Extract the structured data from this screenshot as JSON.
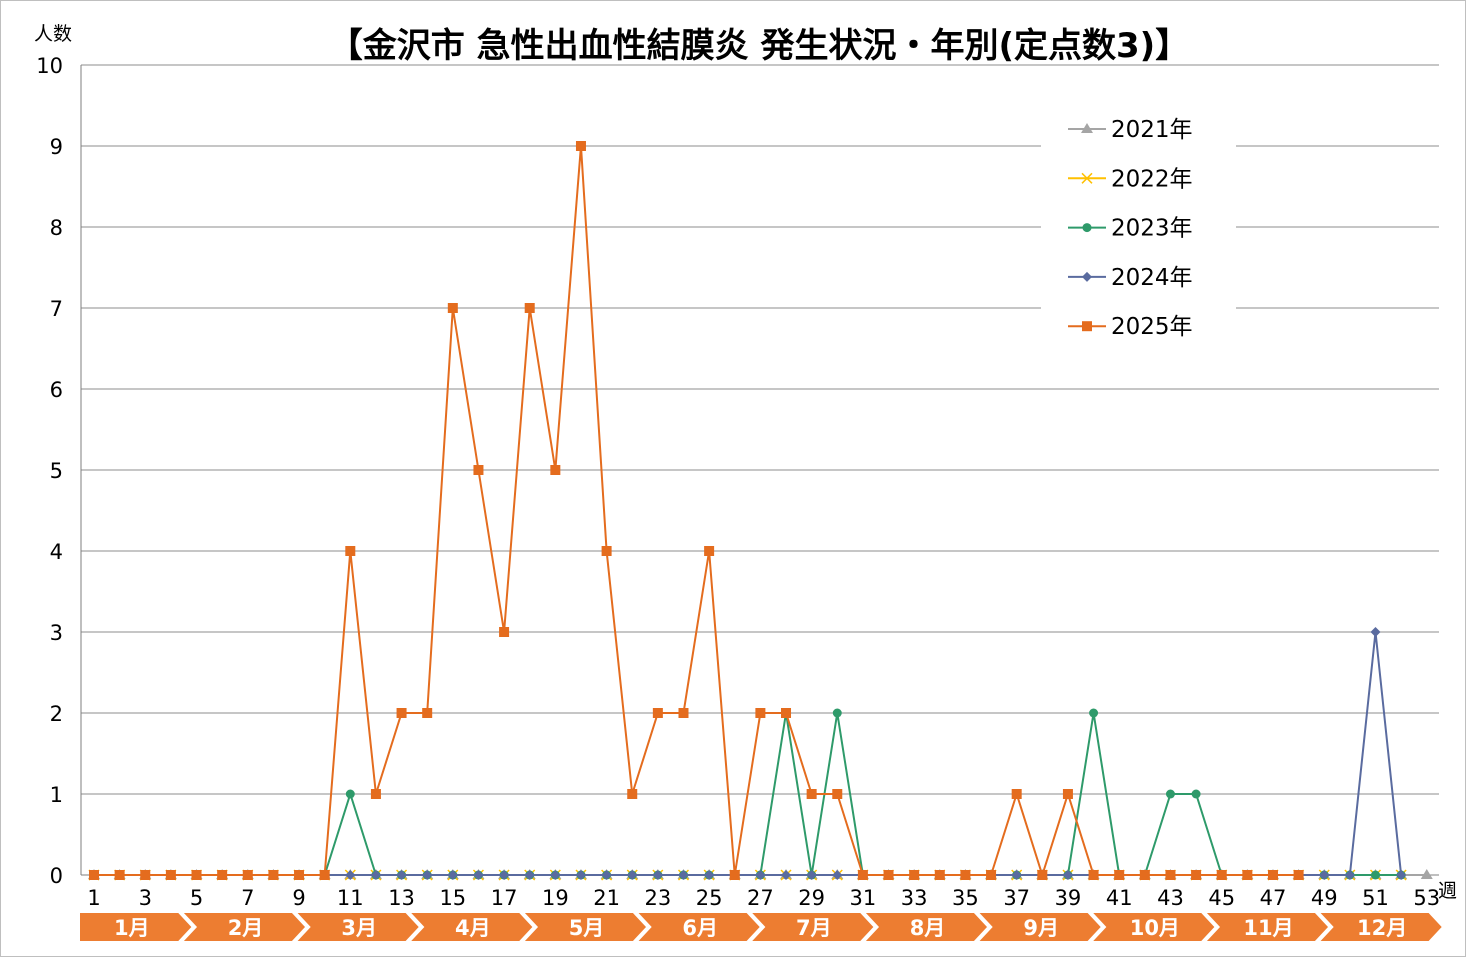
{
  "chart_data": {
    "type": "line",
    "title": "【金沢市 急性出血性結膜炎 発生状況・年別(定点数3)】",
    "ylabel": "人数",
    "xlabel": "週",
    "ylim": [
      0,
      10
    ],
    "yticks": [
      "0",
      "1",
      "2",
      "3",
      "4",
      "5",
      "6",
      "7",
      "8",
      "9",
      "10"
    ],
    "x": [
      1,
      2,
      3,
      4,
      5,
      6,
      7,
      8,
      9,
      10,
      11,
      12,
      13,
      14,
      15,
      16,
      17,
      18,
      19,
      20,
      21,
      22,
      23,
      24,
      25,
      26,
      27,
      28,
      29,
      30,
      31,
      32,
      33,
      34,
      35,
      36,
      37,
      38,
      39,
      40,
      41,
      42,
      43,
      44,
      45,
      46,
      47,
      48,
      49,
      50,
      51,
      52,
      53
    ],
    "xtick_labels": [
      "1",
      "3",
      "5",
      "7",
      "9",
      "11",
      "13",
      "15",
      "17",
      "19",
      "21",
      "23",
      "25",
      "27",
      "29",
      "31",
      "33",
      "35",
      "37",
      "39",
      "41",
      "43",
      "45",
      "47",
      "49",
      "51",
      "53"
    ],
    "months": [
      "1月",
      "2月",
      "3月",
      "4月",
      "5月",
      "6月",
      "7月",
      "8月",
      "9月",
      "10月",
      "11月",
      "12月"
    ],
    "grid": true,
    "legend_position": "top-right",
    "series": [
      {
        "name": "2021年",
        "color": "#a5a5a5",
        "marker": "triangle",
        "values": [
          0,
          0,
          0,
          0,
          0,
          0,
          0,
          0,
          0,
          0,
          0,
          0,
          0,
          0,
          0,
          0,
          0,
          0,
          0,
          0,
          0,
          0,
          0,
          0,
          0,
          0,
          0,
          0,
          0,
          0,
          0,
          0,
          0,
          0,
          0,
          0,
          0,
          0,
          0,
          0,
          0,
          0,
          0,
          0,
          0,
          0,
          0,
          0,
          0,
          0,
          0,
          0,
          0
        ]
      },
      {
        "name": "2022年",
        "color": "#ffc000",
        "marker": "x",
        "values": [
          0,
          0,
          0,
          0,
          0,
          0,
          0,
          0,
          0,
          0,
          0,
          0,
          0,
          0,
          0,
          0,
          0,
          0,
          0,
          0,
          0,
          0,
          0,
          0,
          0,
          0,
          0,
          0,
          0,
          0,
          0,
          0,
          0,
          0,
          0,
          0,
          0,
          0,
          0,
          0,
          0,
          0,
          0,
          0,
          0,
          0,
          0,
          0,
          0,
          0,
          0,
          0,
          null
        ]
      },
      {
        "name": "2023年",
        "color": "#2e9a6a",
        "marker": "circle",
        "values": [
          0,
          0,
          0,
          0,
          0,
          0,
          0,
          0,
          0,
          0,
          1,
          0,
          0,
          0,
          0,
          0,
          0,
          0,
          0,
          0,
          0,
          0,
          0,
          0,
          0,
          0,
          0,
          2,
          0,
          2,
          0,
          0,
          0,
          0,
          0,
          0,
          0,
          0,
          0,
          2,
          0,
          0,
          1,
          1,
          0,
          0,
          0,
          0,
          0,
          0,
          0,
          0,
          null
        ]
      },
      {
        "name": "2024年",
        "color": "#5a6b9f",
        "marker": "diamond",
        "values": [
          0,
          0,
          0,
          0,
          0,
          0,
          0,
          0,
          0,
          0,
          0,
          0,
          0,
          0,
          0,
          0,
          0,
          0,
          0,
          0,
          0,
          0,
          0,
          0,
          0,
          0,
          0,
          0,
          0,
          0,
          0,
          0,
          0,
          0,
          0,
          0,
          0,
          0,
          0,
          0,
          0,
          0,
          0,
          0,
          0,
          0,
          0,
          0,
          0,
          0,
          3,
          0,
          null
        ]
      },
      {
        "name": "2025年",
        "color": "#e46c1e",
        "marker": "square",
        "values": [
          0,
          0,
          0,
          0,
          0,
          0,
          0,
          0,
          0,
          0,
          4,
          1,
          2,
          2,
          7,
          5,
          3,
          7,
          5,
          9,
          4,
          1,
          2,
          2,
          4,
          0,
          2,
          2,
          1,
          1,
          0,
          0,
          0,
          0,
          0,
          0,
          1,
          0,
          1,
          0,
          0,
          0,
          0,
          0,
          0,
          0,
          0,
          0,
          null,
          null,
          null,
          null,
          null
        ]
      }
    ]
  }
}
